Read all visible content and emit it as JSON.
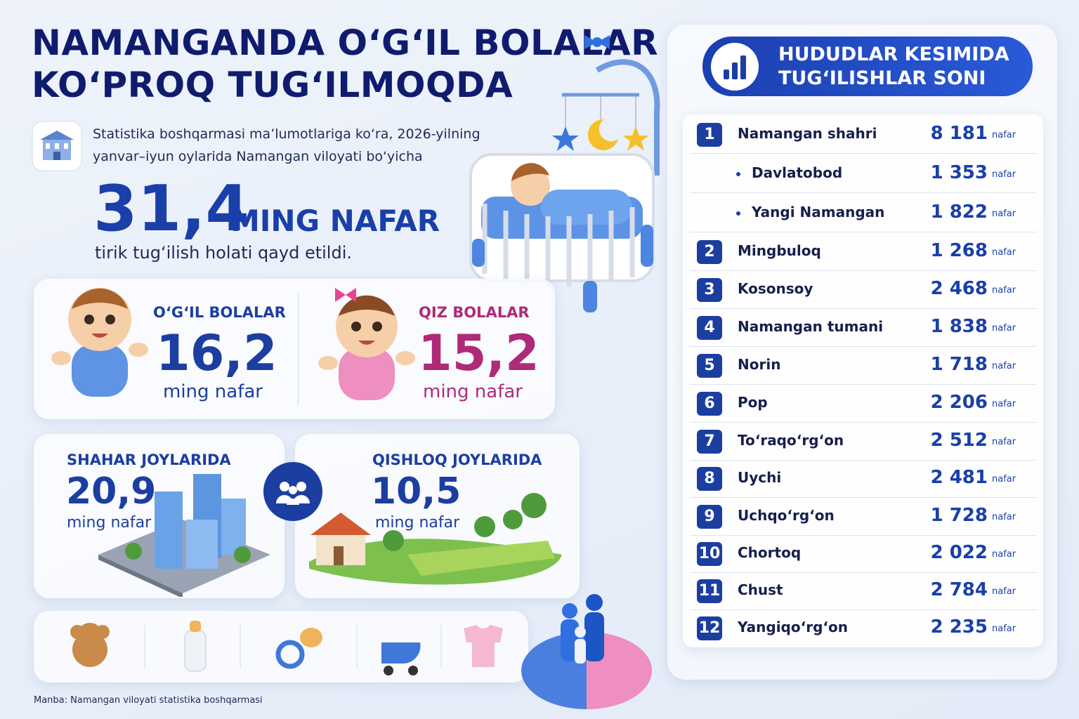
{
  "header": {
    "title_line1": "NAMANGANDA O‘G‘IL BOLALAR",
    "title_line2": "KO‘PROQ TUG‘ILMOQDA"
  },
  "intro": {
    "text_line1": "Statistika boshqarmasi ma’lumotlariga ko‘ra, 2026-yilning",
    "text_line2": "yanvar–iyun oylarida Namangan viloyati bo‘yicha",
    "total_number": "31,4",
    "total_unit": "MING NAFAR",
    "caption": "tirik tug‘ilish holati qayd etildi."
  },
  "gender": {
    "boys": {
      "label": "O‘G‘IL BOLALAR",
      "value": "16,2",
      "unit": "ming nafar"
    },
    "girls": {
      "label": "QIZ BOLALAR",
      "value": "15,2",
      "unit": "ming nafar"
    }
  },
  "area": {
    "urban": {
      "label": "SHAHAR JOYLARIDA",
      "value": "20,9",
      "unit": "ming nafar"
    },
    "rural": {
      "label": "QISHLOQ JOYLARIDA",
      "value": "10,5",
      "unit": "ming nafar"
    }
  },
  "table": {
    "title_line1": "HUDUDLAR KESIMIDA",
    "title_line2": "TUG‘ILISHLAR SONI",
    "rows": [
      {
        "rank": "1",
        "name": "Namangan shahri",
        "value": "8 181",
        "unit": "nafar"
      },
      {
        "name": "Davlatobod",
        "value": "1 353",
        "unit": "nafar"
      },
      {
        "name": "Yangi Namangan",
        "value": "1 822",
        "unit": "nafar"
      },
      {
        "rank": "2",
        "name": "Mingbuloq",
        "value": "1 268",
        "unit": "nafar"
      },
      {
        "rank": "3",
        "name": "Kosonsoy",
        "value": "2 468",
        "unit": "nafar"
      },
      {
        "rank": "4",
        "name": "Namangan tumani",
        "value": "1 838",
        "unit": "nafar"
      },
      {
        "rank": "5",
        "name": "Norin",
        "value": "1 718",
        "unit": "nafar"
      },
      {
        "rank": "6",
        "name": "Pop",
        "value": "2 206",
        "unit": "nafar"
      },
      {
        "rank": "7",
        "name": "To‘raqo‘rg‘on",
        "value": "2 512",
        "unit": "nafar"
      },
      {
        "rank": "8",
        "name": "Uychi",
        "value": "2 481",
        "unit": "nafar"
      },
      {
        "rank": "9",
        "name": "Uchqo‘rg‘on",
        "value": "1 728",
        "unit": "nafar"
      },
      {
        "rank": "10",
        "name": "Chortoq",
        "value": "2 022",
        "unit": "nafar"
      },
      {
        "rank": "11",
        "name": "Chust",
        "value": "2 784",
        "unit": "nafar"
      },
      {
        "rank": "12",
        "name": "Yangiqo‘rg‘on",
        "value": "2 235",
        "unit": "nafar"
      }
    ]
  },
  "footer": {
    "source": "Manba: Namangan viloyati statistika boshqarmasi"
  }
}
